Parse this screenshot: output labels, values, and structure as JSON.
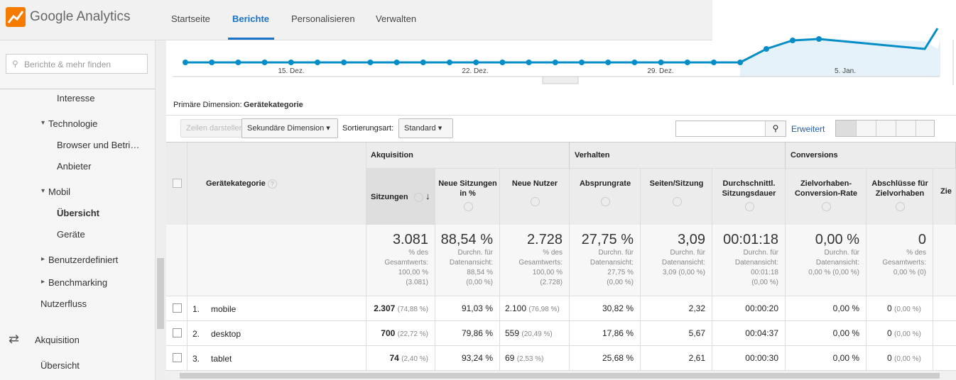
{
  "header": {
    "logo": "Google Analytics",
    "nav": [
      "Startseite",
      "Berichte",
      "Personalisieren",
      "Verwalten"
    ],
    "active_nav": 1
  },
  "sidebar": {
    "search_placeholder": "Berichte & mehr finden",
    "items": [
      "Interesse",
      "Technologie",
      "Browser und Betri…",
      "Anbieter",
      "Mobil",
      "Übersicht",
      "Geräte",
      "Benutzerdefiniert",
      "Benchmarking",
      "Nutzerfluss",
      "Akquisition",
      "Übersicht"
    ]
  },
  "timeline": {
    "x_labels": [
      "15. Dez.",
      "22. Dez.",
      "29. Dez.",
      "5. Jan."
    ]
  },
  "toolbar": {
    "primary_dimension_label": "Primäre Dimension:",
    "primary_dimension_value": "Gerätekategorie",
    "show_rows": "Zeilen darstellen",
    "secondary_dimension": "Sekundäre Dimension",
    "sort_label": "Sortierungsart:",
    "sort_value": "Standard",
    "advanced": "Erweitert"
  },
  "table": {
    "groups": [
      "Akquisition",
      "Verhalten",
      "Conversions"
    ],
    "dimension_header": "Gerätekategorie",
    "columns": [
      "Sitzungen",
      "Neue Sitzungen in %",
      "Neue Nutzer",
      "Absprungrate",
      "Seiten/Sitzung",
      "Durchschnittl. Sitzungsdauer",
      "Zielvorhaben-Conversion-Rate",
      "Abschlüsse für Zielvorhaben",
      "Zie"
    ],
    "totals": [
      {
        "value": "3.081",
        "note": [
          "% des",
          "Gesamtwerts:",
          "100,00 %",
          "(3.081)"
        ]
      },
      {
        "value": "88,54 %",
        "note": [
          "Durchn. für",
          "Datenansicht:",
          "88,54 %",
          "(0,00 %)"
        ]
      },
      {
        "value": "2.728",
        "note": [
          "% des",
          "Gesamtwerts:",
          "100,00 %",
          "(2.728)"
        ]
      },
      {
        "value": "27,75 %",
        "note": [
          "Durchn. für",
          "Datenansicht:",
          "27,75 %",
          "(0,00 %)"
        ]
      },
      {
        "value": "3,09",
        "note": [
          "Durchn. für",
          "Datenansicht:",
          "3,09 (0,00 %)"
        ]
      },
      {
        "value": "00:01:18",
        "note": [
          "Durchn. für",
          "Datenansicht:",
          "00:01:18",
          "(0,00 %)"
        ]
      },
      {
        "value": "0,00 %",
        "note": [
          "Durchn. für",
          "Datenansicht:",
          "0,00 % (0,00 %)"
        ]
      },
      {
        "value": "0",
        "note": [
          "% des",
          "Gesamtwerts:",
          "0,00 % (0)"
        ]
      }
    ],
    "rows": [
      {
        "index": "1.",
        "name": "mobile",
        "cells": [
          {
            "value": "2.307",
            "share": "(74,88 %)"
          },
          {
            "value": "91,03 %"
          },
          {
            "value": "2.100",
            "share": "(76,98 %)"
          },
          {
            "value": "30,82 %"
          },
          {
            "value": "2,32"
          },
          {
            "value": "00:00:20"
          },
          {
            "value": "0,00 %"
          },
          {
            "value": "0",
            "share": "(0,00 %)"
          }
        ]
      },
      {
        "index": "2.",
        "name": "desktop",
        "cells": [
          {
            "value": "700",
            "share": "(22,72 %)"
          },
          {
            "value": "79,86 %"
          },
          {
            "value": "559",
            "share": "(20,49 %)"
          },
          {
            "value": "17,86 %"
          },
          {
            "value": "5,67"
          },
          {
            "value": "00:04:37"
          },
          {
            "value": "0,00 %"
          },
          {
            "value": "0",
            "share": "(0,00 %)"
          }
        ]
      },
      {
        "index": "3.",
        "name": "tablet",
        "cells": [
          {
            "value": "74",
            "share": "(2,40 %)"
          },
          {
            "value": "93,24 %"
          },
          {
            "value": "69",
            "share": "(2,53 %)"
          },
          {
            "value": "25,68 %"
          },
          {
            "value": "2,61"
          },
          {
            "value": "00:00:30"
          },
          {
            "value": "0,00 %"
          },
          {
            "value": "0",
            "share": "(0,00 %)"
          }
        ]
      }
    ]
  }
}
